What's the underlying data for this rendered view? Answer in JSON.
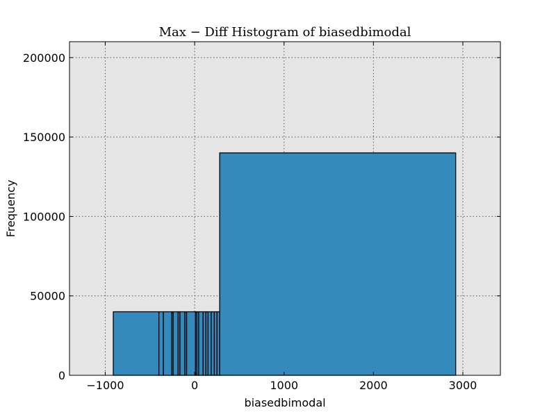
{
  "chart_data": {
    "type": "bar",
    "title": "Max − Diff Histogram of biasedbimodal",
    "xlabel": "biasedbimodal",
    "ylabel": "Frequency",
    "xlim": [
      -1400,
      3420
    ],
    "ylim": [
      0,
      210000
    ],
    "xticks": [
      -1000,
      0,
      1000,
      2000,
      3000
    ],
    "xtick_labels": [
      "−1000",
      "0",
      "1000",
      "2000",
      "3000"
    ],
    "yticks": [
      0,
      50000,
      100000,
      150000,
      200000
    ],
    "ytick_labels": [
      "0",
      "50000",
      "100000",
      "150000",
      "200000"
    ],
    "grid": true,
    "background": "#e5e5e5",
    "bar_color": "#348abd",
    "bins": [
      {
        "x0": -910,
        "x1": -400,
        "count": 40000
      },
      {
        "x0": -400,
        "x1": -350,
        "count": 40000
      },
      {
        "x0": -350,
        "x1": -255,
        "count": 40000
      },
      {
        "x0": -255,
        "x1": -240,
        "count": 40000
      },
      {
        "x0": -240,
        "x1": -185,
        "count": 40000
      },
      {
        "x0": -185,
        "x1": -165,
        "count": 40000
      },
      {
        "x0": -165,
        "x1": -110,
        "count": 40000
      },
      {
        "x0": -110,
        "x1": -90,
        "count": 40000
      },
      {
        "x0": -90,
        "x1": 10,
        "count": 40000
      },
      {
        "x0": 10,
        "x1": 25,
        "count": 40000
      },
      {
        "x0": 25,
        "x1": 45,
        "count": 40000
      },
      {
        "x0": 45,
        "x1": 95,
        "count": 40000
      },
      {
        "x0": 95,
        "x1": 125,
        "count": 40000
      },
      {
        "x0": 125,
        "x1": 150,
        "count": 40000
      },
      {
        "x0": 150,
        "x1": 185,
        "count": 40000
      },
      {
        "x0": 185,
        "x1": 220,
        "count": 40000
      },
      {
        "x0": 220,
        "x1": 250,
        "count": 40000
      },
      {
        "x0": 250,
        "x1": 280,
        "count": 40000
      },
      {
        "x0": 280,
        "x1": 2920,
        "count": 140000
      }
    ]
  }
}
